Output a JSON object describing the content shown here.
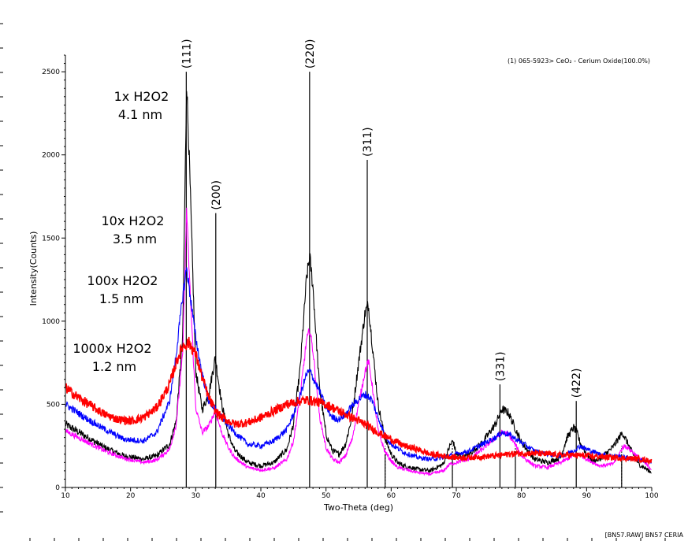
{
  "chart_data": {
    "type": "line",
    "title": "",
    "xlabel": "Two-Theta (deg)",
    "ylabel": "Intensity(Counts)",
    "xlim": [
      10,
      100
    ],
    "ylim": [
      0,
      2600
    ],
    "xticks": [
      10,
      20,
      30,
      40,
      50,
      60,
      70,
      80,
      90,
      100
    ],
    "yticks": [
      0,
      500,
      1000,
      1500,
      2000,
      2500
    ],
    "grid": false,
    "reference_label": "(1) 065-5923> CeO₂ - Cerium Oxide(100.0%)",
    "footer": "[BN57.RAW] BN57 CERIA",
    "reference_lines": [
      {
        "x": 28.55,
        "y": 2500,
        "label": "(111)"
      },
      {
        "x": 33.08,
        "y": 1650,
        "label": "(200)"
      },
      {
        "x": 47.48,
        "y": 2500,
        "label": "(220)"
      },
      {
        "x": 56.33,
        "y": 1970,
        "label": "(311)"
      },
      {
        "x": 59.08,
        "y": 200,
        "label": ""
      },
      {
        "x": 69.4,
        "y": 200,
        "label": ""
      },
      {
        "x": 76.7,
        "y": 620,
        "label": "(331)"
      },
      {
        "x": 79.07,
        "y": 200,
        "label": ""
      },
      {
        "x": 88.41,
        "y": 520,
        "label": "(422)"
      },
      {
        "x": 95.38,
        "y": 200,
        "label": ""
      }
    ],
    "series_annotations": [
      {
        "line1": "1x H2O2",
        "line2": "4.1 nm"
      },
      {
        "line1": "10x H2O2",
        "line2": "3.5 nm"
      },
      {
        "line1": "100x H2O2",
        "line2": "1.5 nm"
      },
      {
        "line1": "1000x H2O2",
        "line2": "1.2 nm"
      }
    ],
    "series": [
      {
        "color": "#000000",
        "noise": 22,
        "x": [
          10,
          13,
          16,
          19,
          22,
          24,
          26,
          27,
          28,
          28.6,
          29,
          30,
          31,
          32,
          33,
          34,
          35,
          36,
          38,
          40,
          42,
          44,
          45,
          46,
          47,
          47.5,
          48,
          49,
          50,
          51,
          52,
          53,
          54,
          55,
          56,
          56.5,
          57,
          58,
          59,
          60,
          61,
          62,
          64,
          66,
          68,
          69,
          69.5,
          70,
          71,
          72,
          74,
          76,
          77,
          78,
          79,
          80,
          82,
          84,
          86,
          87,
          88,
          88.5,
          89,
          90,
          91,
          92,
          94,
          95,
          95.5,
          96,
          97,
          98,
          100
        ],
        "y": [
          380,
          310,
          240,
          190,
          170,
          190,
          260,
          400,
          900,
          2440,
          2000,
          700,
          470,
          560,
          780,
          500,
          320,
          220,
          150,
          130,
          150,
          230,
          380,
          700,
          1250,
          1390,
          1200,
          600,
          320,
          220,
          200,
          260,
          430,
          750,
          1050,
          1100,
          900,
          500,
          300,
          200,
          150,
          130,
          110,
          100,
          140,
          250,
          280,
          200,
          180,
          200,
          270,
          380,
          470,
          450,
          360,
          270,
          170,
          150,
          180,
          300,
          360,
          330,
          270,
          200,
          160,
          170,
          240,
          300,
          330,
          290,
          210,
          140,
          90
        ]
      },
      {
        "color": "#ff00ff",
        "noise": 16,
        "x": [
          10,
          13,
          16,
          19,
          22,
          24,
          26,
          27,
          28,
          28.6,
          29,
          30,
          31,
          32,
          33,
          34,
          35,
          36,
          38,
          40,
          42,
          44,
          45,
          46,
          47,
          47.5,
          48,
          49,
          50,
          51,
          52,
          53,
          54,
          55,
          56,
          56.5,
          57,
          58,
          59,
          60,
          61,
          62,
          64,
          66,
          68,
          69,
          70,
          72,
          74,
          76,
          77,
          78,
          79,
          80,
          82,
          84,
          86,
          88,
          89,
          90,
          92,
          94,
          95,
          95.5,
          96,
          98,
          100
        ],
        "y": [
          340,
          280,
          220,
          175,
          150,
          165,
          230,
          380,
          800,
          1680,
          1300,
          480,
          330,
          370,
          460,
          330,
          240,
          180,
          120,
          105,
          115,
          170,
          280,
          540,
          880,
          950,
          820,
          430,
          240,
          170,
          150,
          190,
          290,
          500,
          700,
          760,
          640,
          340,
          220,
          160,
          120,
          110,
          90,
          80,
          100,
          140,
          150,
          170,
          230,
          300,
          330,
          320,
          260,
          190,
          130,
          120,
          150,
          190,
          200,
          170,
          130,
          140,
          200,
          240,
          250,
          180,
          110
        ]
      },
      {
        "color": "#0000ff",
        "noise": 18,
        "x": [
          10,
          13,
          16,
          19,
          22,
          24,
          26,
          27,
          28,
          28.6,
          29,
          30,
          31,
          32,
          33,
          34,
          36,
          38,
          40,
          42,
          44,
          45,
          46,
          47,
          47.5,
          48,
          49,
          50,
          51,
          52,
          53,
          54,
          55,
          56,
          57,
          58,
          59,
          60,
          62,
          64,
          66,
          68,
          70,
          72,
          74,
          76,
          77,
          78,
          80,
          82,
          84,
          86,
          88,
          89,
          90,
          92,
          94,
          96,
          98,
          100
        ],
        "y": [
          500,
          420,
          350,
          290,
          280,
          330,
          520,
          800,
          1150,
          1320,
          1200,
          900,
          680,
          520,
          470,
          420,
          330,
          260,
          250,
          280,
          350,
          440,
          550,
          680,
          700,
          660,
          580,
          480,
          420,
          410,
          440,
          490,
          530,
          560,
          530,
          420,
          320,
          260,
          210,
          180,
          170,
          180,
          200,
          220,
          260,
          300,
          330,
          320,
          270,
          220,
          200,
          190,
          220,
          250,
          230,
          200,
          190,
          180,
          170,
          150
        ]
      },
      {
        "color": "#ff0000",
        "noise": 22,
        "x": [
          10,
          12,
          14,
          16,
          18,
          20,
          22,
          24,
          26,
          27,
          28,
          29,
          30,
          31,
          32,
          33,
          34,
          35,
          36,
          38,
          40,
          42,
          44,
          46,
          47,
          48,
          50,
          52,
          54,
          56,
          58,
          60,
          62,
          64,
          66,
          68,
          70,
          72,
          74,
          76,
          78,
          80,
          82,
          84,
          86,
          88,
          90,
          92,
          94,
          96,
          98,
          100
        ],
        "y": [
          600,
          540,
          490,
          440,
          410,
          400,
          420,
          480,
          620,
          750,
          850,
          870,
          800,
          660,
          540,
          460,
          420,
          400,
          380,
          390,
          420,
          460,
          500,
          520,
          525,
          520,
          500,
          460,
          420,
          380,
          330,
          290,
          250,
          230,
          200,
          190,
          180,
          180,
          185,
          190,
          200,
          205,
          205,
          200,
          195,
          195,
          190,
          185,
          180,
          175,
          170,
          160
        ]
      }
    ]
  }
}
